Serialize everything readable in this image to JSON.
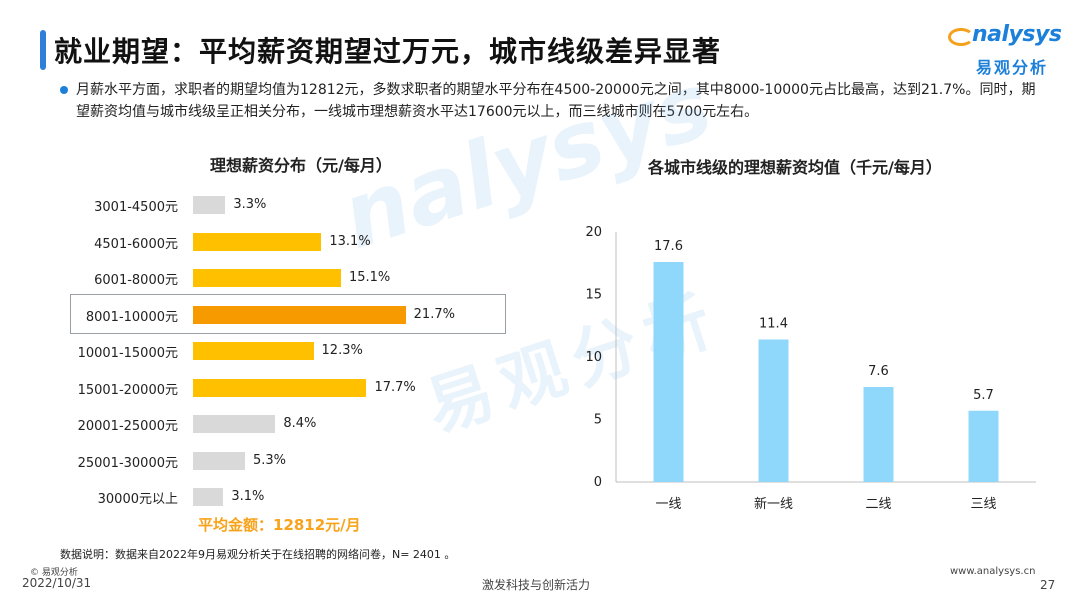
{
  "header": {
    "title": "就业期望：平均薪资期望过万元，城市线级差异显著",
    "logo_en": "nalysys",
    "logo_zh": "易观分析"
  },
  "summary": {
    "text": "月薪水平方面，求职者的期望均值为12812元，多数求职者的期望水平分布在4500-20000元之间，其中8000-10000元占比最高，达到21.7%。同时，期望薪资均值与城市线级呈正相关分布，一线城市理想薪资水平达17600元以上，而三线城市则在5700元左右。"
  },
  "watermark": {
    "en": "nalysys",
    "zh": "易观分析"
  },
  "colors": {
    "accent_blue": "#1c7fd9",
    "gray_bar": "#d9d9d9",
    "yellow_bar": "#ffc000",
    "orange_bar": "#f79a00",
    "light_blue_bar": "#8fd8fb",
    "avg_text": "#f7a31c"
  },
  "chart_data": [
    {
      "type": "bar",
      "orientation": "horizontal",
      "title": "理想薪资分布（元/每月）",
      "categories": [
        "3001-4500元",
        "4501-6000元",
        "6001-8000元",
        "8001-10000元",
        "10001-15000元",
        "15001-20000元",
        "20001-25000元",
        "25001-30000元",
        "30000元以上"
      ],
      "values": [
        3.3,
        13.1,
        15.1,
        21.7,
        12.3,
        17.7,
        8.4,
        5.3,
        3.1
      ],
      "value_labels": [
        "3.3%",
        "13.1%",
        "15.1%",
        "21.7%",
        "12.3%",
        "17.7%",
        "8.4%",
        "5.3%",
        "3.1%"
      ],
      "bar_colors": [
        "#d9d9d9",
        "#ffc000",
        "#ffc000",
        "#f79a00",
        "#ffc000",
        "#ffc000",
        "#d9d9d9",
        "#d9d9d9",
        "#d9d9d9"
      ],
      "highlighted": "8001-10000元",
      "xlim": [
        0,
        25
      ]
    },
    {
      "type": "bar",
      "title": "各城市线级的理想薪资均值（千元/每月）",
      "categories": [
        "一线",
        "新一线",
        "二线",
        "三线"
      ],
      "values": [
        17.6,
        11.4,
        7.6,
        5.7
      ],
      "value_labels": [
        "17.6",
        "11.4",
        "7.6",
        "5.7"
      ],
      "yticks": [
        "0",
        "5",
        "10",
        "15",
        "20"
      ],
      "ylim": [
        0,
        20
      ],
      "grid": false,
      "color": "#8fd8fb"
    }
  ],
  "average": {
    "text": "平均金额：12812元/月"
  },
  "footer": {
    "note": "数据说明：数据来自2022年9月易观分析关于在线招聘的网络问卷，N= 2401 。",
    "copyright": "© 易观分析",
    "date": "2022/10/31",
    "slogan": "激发科技与创新活力",
    "website": "www.analysys.cn",
    "page": "27"
  }
}
